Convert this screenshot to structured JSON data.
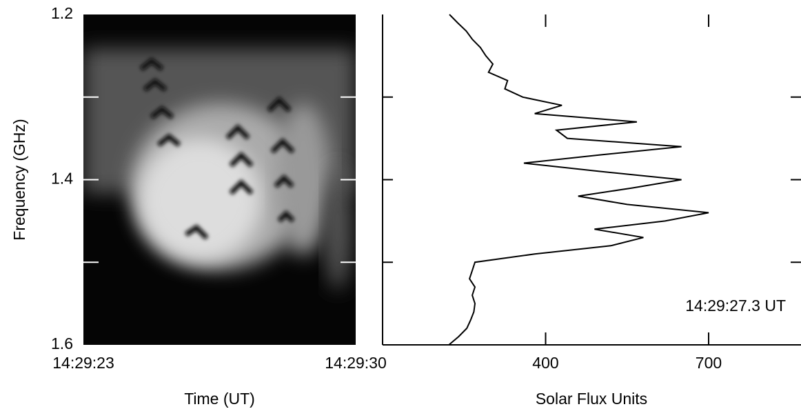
{
  "chart_data": [
    {
      "type": "spectrogram",
      "ylabel": "Frequency (GHz)",
      "xlabel": "Time (UT)",
      "xlim": [
        "14:29:23",
        "14:29:30"
      ],
      "ylim": [
        1.2,
        1.6
      ],
      "y_inverted": true,
      "yticks": [
        1.2,
        1.4,
        1.6
      ],
      "minor_yticks": [
        1.3,
        1.4,
        1.5
      ]
    },
    {
      "type": "line",
      "xlabel": "Solar Flux Units",
      "annotation": "14:29:27.3 UT",
      "color": "#000000",
      "xlim": [
        100,
        870
      ],
      "xticks": [
        400,
        700
      ],
      "ylim": [
        1.2,
        1.6
      ],
      "y_inverted": true,
      "yticks": [
        1.3,
        1.4,
        1.5
      ],
      "frequencies": [
        1.2,
        1.21,
        1.22,
        1.23,
        1.24,
        1.25,
        1.26,
        1.27,
        1.28,
        1.29,
        1.3,
        1.31,
        1.32,
        1.33,
        1.34,
        1.35,
        1.36,
        1.37,
        1.38,
        1.39,
        1.4,
        1.41,
        1.42,
        1.43,
        1.44,
        1.45,
        1.46,
        1.47,
        1.48,
        1.49,
        1.5,
        1.51,
        1.52,
        1.53,
        1.54,
        1.55,
        1.56,
        1.57,
        1.58,
        1.59,
        1.6
      ],
      "values": [
        223,
        238,
        254,
        265,
        280,
        290,
        303,
        295,
        330,
        325,
        358,
        430,
        380,
        568,
        420,
        440,
        650,
        500,
        360,
        500,
        650,
        560,
        460,
        550,
        700,
        620,
        490,
        580,
        520,
        380,
        270,
        265,
        260,
        270,
        265,
        270,
        268,
        262,
        255,
        240,
        222
      ]
    }
  ]
}
